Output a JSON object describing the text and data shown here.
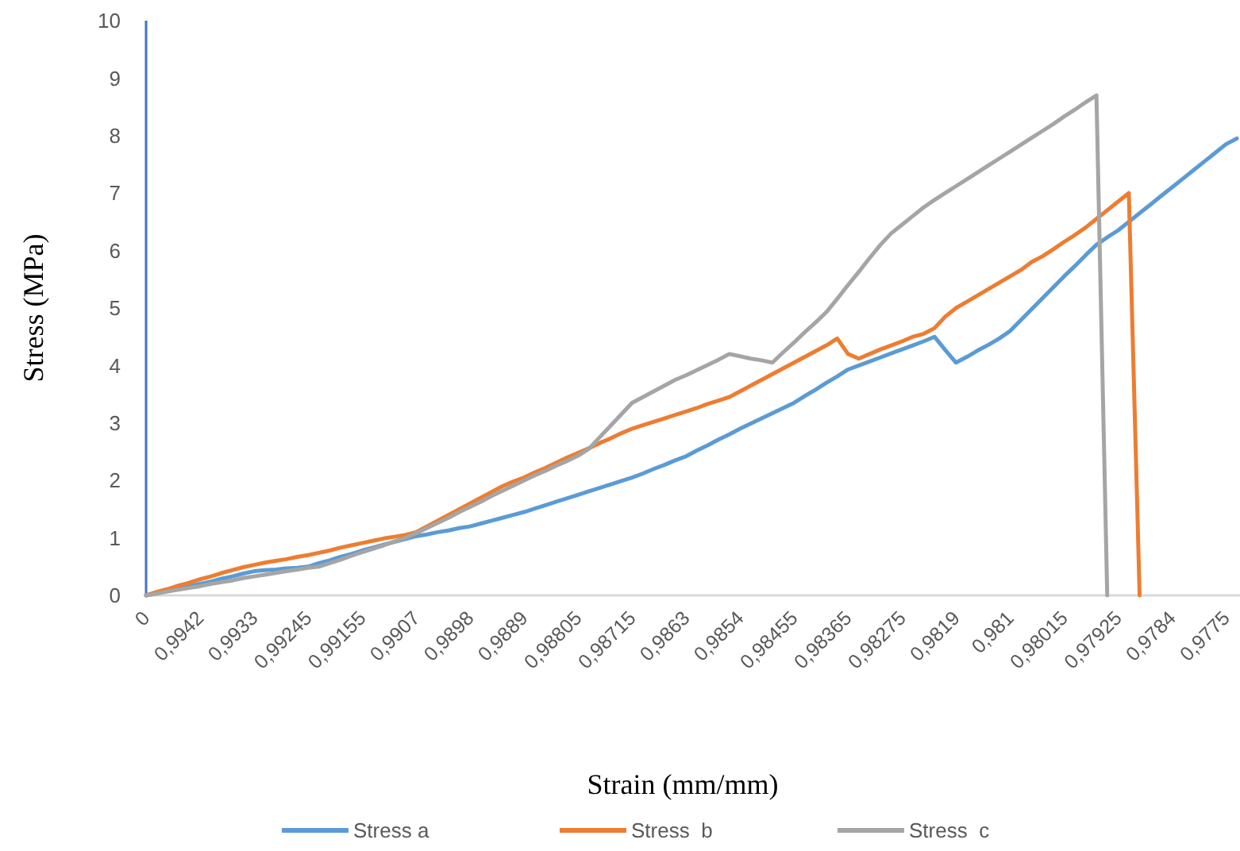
{
  "chart_data": {
    "type": "line",
    "xlabel": "Strain (mm/mm)",
    "ylabel": "Stress (MPa)",
    "categories": [
      "0",
      null,
      null,
      null,
      null,
      "0,9942",
      null,
      null,
      null,
      null,
      "0,9933",
      null,
      null,
      null,
      null,
      "0,99245",
      null,
      null,
      null,
      null,
      "0,99155",
      null,
      null,
      null,
      null,
      "0,9907",
      null,
      null,
      null,
      null,
      "0,9898",
      null,
      null,
      null,
      null,
      "0,9889",
      null,
      null,
      null,
      null,
      "0,98805",
      null,
      null,
      null,
      null,
      "0,98715",
      null,
      null,
      null,
      null,
      "0,9863",
      null,
      null,
      null,
      null,
      "0,9854",
      null,
      null,
      null,
      null,
      "0,98455",
      null,
      null,
      null,
      null,
      "0,98365",
      null,
      null,
      null,
      null,
      "0,98275",
      null,
      null,
      null,
      null,
      "0,9819",
      null,
      null,
      null,
      null,
      "0,981",
      null,
      null,
      null,
      null,
      "0,98015",
      null,
      null,
      null,
      null,
      "0,97925",
      null,
      null,
      null,
      null,
      "0,9784",
      null,
      null,
      null,
      null,
      "0,9775",
      null
    ],
    "ylim": [
      0,
      10
    ],
    "yticks": [
      0,
      1,
      2,
      3,
      4,
      5,
      6,
      7,
      8,
      9,
      10
    ],
    "grid": false,
    "legend": "bottom",
    "marker": "none",
    "line_style": "solid",
    "series": [
      {
        "name": "Stress a",
        "color": "#5b9bd5",
        "values": [
          0,
          0.04,
          0.08,
          0.12,
          0.16,
          0.2,
          0.24,
          0.29,
          0.33,
          0.38,
          0.42,
          0.44,
          0.45,
          0.47,
          0.48,
          0.5,
          0.56,
          0.61,
          0.67,
          0.72,
          0.78,
          0.83,
          0.88,
          0.93,
          0.98,
          1.03,
          1.06,
          1.1,
          1.13,
          1.17,
          1.2,
          1.25,
          1.3,
          1.35,
          1.4,
          1.45,
          1.51,
          1.57,
          1.63,
          1.69,
          1.75,
          1.81,
          1.87,
          1.93,
          1.99,
          2.05,
          2.12,
          2.2,
          2.27,
          2.35,
          2.42,
          2.52,
          2.61,
          2.71,
          2.8,
          2.9,
          2.99,
          3.08,
          3.17,
          3.26,
          3.35,
          3.47,
          3.58,
          3.7,
          3.81,
          3.93,
          4.0,
          4.07,
          4.14,
          4.21,
          4.28,
          4.35,
          4.42,
          4.5,
          4.27,
          4.05,
          4.15,
          4.26,
          4.36,
          4.47,
          4.6,
          4.79,
          4.98,
          5.17,
          5.36,
          5.55,
          5.73,
          5.92,
          6.1,
          6.23,
          6.35,
          6.5,
          6.65,
          6.8,
          6.95,
          7.1,
          7.25,
          7.4,
          7.55,
          7.7,
          7.85,
          7.95
        ]
      },
      {
        "name": "Stress  b",
        "color": "#ed7d31",
        "values": [
          0,
          0.06,
          0.11,
          0.17,
          0.22,
          0.28,
          0.33,
          0.39,
          0.44,
          0.49,
          0.53,
          0.57,
          0.6,
          0.63,
          0.67,
          0.7,
          0.74,
          0.78,
          0.83,
          0.87,
          0.91,
          0.95,
          0.99,
          1.02,
          1.05,
          1.1,
          1.2,
          1.3,
          1.4,
          1.5,
          1.6,
          1.7,
          1.8,
          1.9,
          1.98,
          2.05,
          2.14,
          2.22,
          2.31,
          2.4,
          2.48,
          2.56,
          2.65,
          2.73,
          2.82,
          2.9,
          2.96,
          3.02,
          3.08,
          3.14,
          3.2,
          3.26,
          3.33,
          3.39,
          3.45,
          3.55,
          3.65,
          3.75,
          3.85,
          3.95,
          4.05,
          4.15,
          4.25,
          4.35,
          4.47,
          4.2,
          4.12,
          4.2,
          4.28,
          4.35,
          4.42,
          4.5,
          4.55,
          4.65,
          4.85,
          5.0,
          5.11,
          5.22,
          5.33,
          5.44,
          5.55,
          5.66,
          5.8,
          5.9,
          6.02,
          6.15,
          6.27,
          6.4,
          6.55,
          6.7,
          6.85,
          7.0,
          0,
          null,
          null,
          null,
          null,
          null,
          null,
          null,
          null,
          null
        ]
      },
      {
        "name": "Stress  c",
        "color": "#a5a5a5",
        "values": [
          0,
          0.03,
          0.07,
          0.1,
          0.13,
          0.16,
          0.2,
          0.23,
          0.26,
          0.3,
          0.33,
          0.36,
          0.39,
          0.42,
          0.45,
          0.48,
          0.5,
          0.56,
          0.62,
          0.69,
          0.75,
          0.81,
          0.87,
          0.94,
          1.0,
          1.08,
          1.17,
          1.26,
          1.35,
          1.45,
          1.54,
          1.63,
          1.73,
          1.82,
          1.91,
          2.0,
          2.09,
          2.17,
          2.26,
          2.34,
          2.43,
          2.55,
          2.75,
          2.95,
          3.15,
          3.35,
          3.45,
          3.55,
          3.65,
          3.75,
          3.83,
          3.92,
          4.01,
          4.1,
          4.2,
          4.16,
          4.12,
          4.09,
          4.05,
          4.23,
          4.4,
          4.58,
          4.75,
          4.93,
          5.16,
          5.4,
          5.63,
          5.87,
          6.1,
          6.3,
          6.45,
          6.6,
          6.75,
          6.88,
          7.0,
          7.12,
          7.24,
          7.36,
          7.48,
          7.6,
          7.72,
          7.84,
          7.96,
          8.08,
          8.2,
          8.33,
          8.45,
          8.58,
          8.7,
          0,
          null,
          null,
          null,
          null,
          null,
          null,
          null,
          null,
          null,
          null,
          null,
          null
        ]
      }
    ]
  }
}
